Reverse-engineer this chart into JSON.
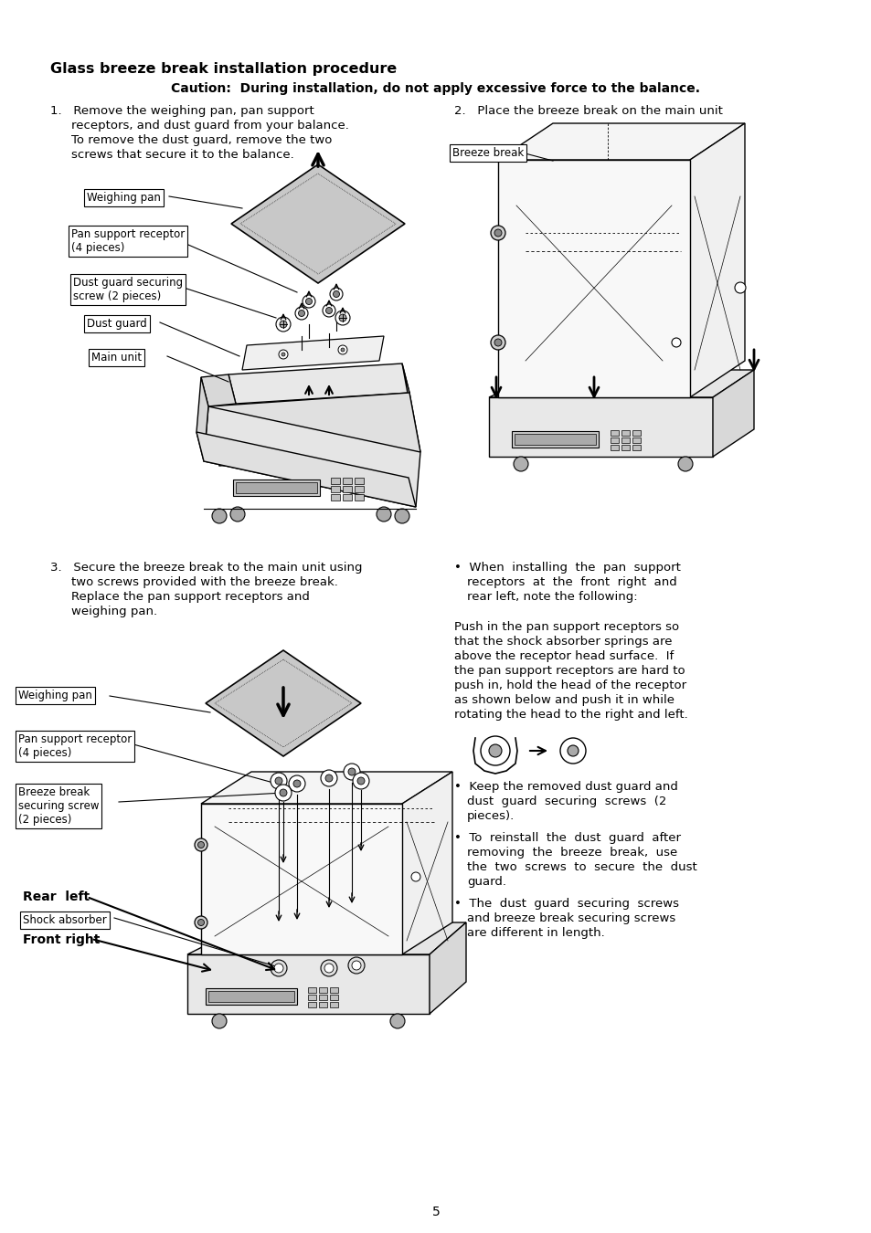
{
  "title": "Glass breeze break installation procedure",
  "caution": "Caution:  During installation, do not apply excessive force to the balance.",
  "background_color": "#ffffff",
  "text_color": "#000000",
  "page_number": "5",
  "step1_text": "1.   Remove the weighing pan, pan support\n     receptors, and dust guard from your balance.\n     To remove the dust guard, remove the two\n     screws that secure it to the balance.",
  "step2_text": "2.   Place the breeze break on the main unit",
  "step3_text": "3.   Secure the breeze break to the main unit using\n     two screws provided with the breeze break.\n     Replace the pan support receptors and\n     weighing pan.",
  "bullet1": "When  installing  the  pan  support\nreceptors  at  the  front  right  and\nrear left, note the following:",
  "bullet2": "Push in the pan support receptors so\nthat the shock absorber springs are\nabove the receptor head surface.  If\nthe pan support receptors are hard to\npush in, hold the head of the receptor\nas shown below and push it in while\nrotating the head to the right and left.",
  "bullet3": "Keep the removed dust guard and\ndust  guard  securing  screws  (2\npieces).",
  "bullet4": "To  reinstall  the  dust  guard  after\nremoving  the  breeze  break,  use\nthe  two  screws  to  secure  the  dust\nguard.",
  "bullet5": "The  dust  guard  securing  screws\nand breeze break securing screws\nare different in length.",
  "label_weighing_pan": "Weighing pan",
  "label_pan_support": "Pan support receptor\n(4 pieces)",
  "label_dust_guard_screw": "Dust guard securing\nscrew (2 pieces)",
  "label_dust_guard": "Dust guard",
  "label_main_unit": "Main unit",
  "label_breeze_break": "Breeze break",
  "label_weighing_pan2": "Weighing pan",
  "label_pan_support2": "Pan support receptor\n(4 pieces)",
  "label_breeze_break_screw": "Breeze break\nsecuring screw\n(2 pieces)",
  "label_rear_left": "Rear  left",
  "label_shock_absorber": "Shock absorber",
  "label_front_right": "Front right"
}
